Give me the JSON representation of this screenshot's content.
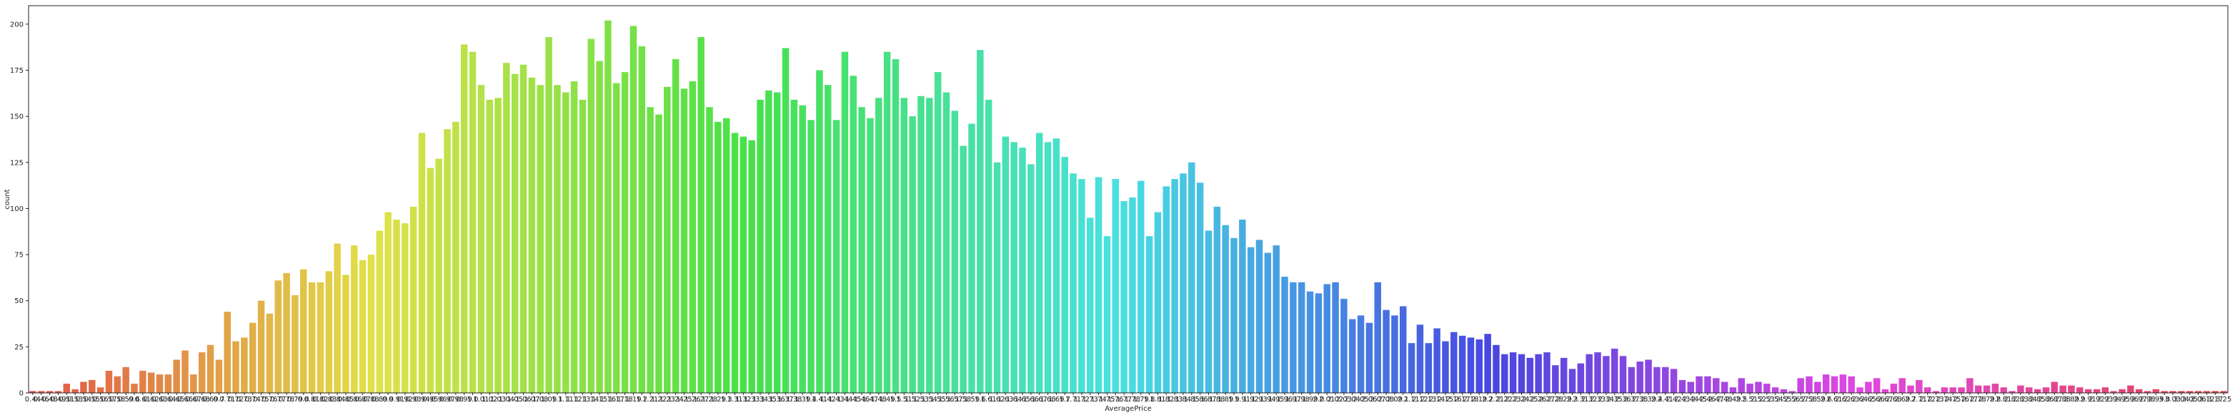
{
  "chart_data": {
    "type": "bar",
    "title": "",
    "xlabel": "AveragePrice",
    "ylabel": "count",
    "ylim": [
      0,
      210
    ],
    "yticks": [
      0,
      25,
      50,
      75,
      100,
      125,
      150,
      175,
      200
    ],
    "grid": false,
    "legend": "none",
    "palette": "husl",
    "first_category": "0.44",
    "last_category": "3.25",
    "categories": [
      "0.44",
      "0.46",
      "0.48",
      "0.49",
      "0.51",
      "0.53",
      "0.54",
      "0.55",
      "0.56",
      "0.57",
      "0.58",
      "0.59",
      "0.6",
      "0.61",
      "0.62",
      "0.63",
      "0.64",
      "0.65",
      "0.66",
      "0.67",
      "0.68",
      "0.69",
      "0.7",
      "0.71",
      "0.72",
      "0.73",
      "0.74",
      "0.75",
      "0.76",
      "0.77",
      "0.78",
      "0.79",
      "0.8",
      "0.81",
      "0.82",
      "0.83",
      "0.84",
      "0.85",
      "0.86",
      "0.87",
      "0.88",
      "0.89",
      "0.9",
      "0.91",
      "0.92",
      "0.93",
      "0.94",
      "0.95",
      "0.96",
      "0.97",
      "0.98",
      "0.99",
      "1.0",
      "1.01",
      "1.02",
      "1.03",
      "1.04",
      "1.05",
      "1.06",
      "1.07",
      "1.08",
      "1.09",
      "1.1",
      "1.11",
      "1.12",
      "1.13",
      "1.14",
      "1.15",
      "1.16",
      "1.17",
      "1.18",
      "1.19",
      "1.2",
      "1.21",
      "1.22",
      "1.23",
      "1.24",
      "1.25",
      "1.26",
      "1.27",
      "1.28",
      "1.29",
      "1.3",
      "1.31",
      "1.32",
      "1.33",
      "1.34",
      "1.35",
      "1.36",
      "1.37",
      "1.38",
      "1.39",
      "1.4",
      "1.41",
      "1.42",
      "1.43",
      "1.44",
      "1.45",
      "1.46",
      "1.47",
      "1.48",
      "1.49",
      "1.5",
      "1.51",
      "1.52",
      "1.53",
      "1.54",
      "1.55",
      "1.56",
      "1.57",
      "1.58",
      "1.59",
      "1.6",
      "1.61",
      "1.62",
      "1.63",
      "1.64",
      "1.65",
      "1.66",
      "1.67",
      "1.68",
      "1.69",
      "1.7",
      "1.71",
      "1.72",
      "1.73",
      "1.74",
      "1.75",
      "1.76",
      "1.77",
      "1.78",
      "1.79",
      "1.8",
      "1.81",
      "1.82",
      "1.83",
      "1.84",
      "1.85",
      "1.86",
      "1.87",
      "1.88",
      "1.89",
      "1.9",
      "1.91",
      "1.92",
      "1.93",
      "1.94",
      "1.95",
      "1.96",
      "1.97",
      "1.98",
      "1.99",
      "2.0",
      "2.01",
      "2.02",
      "2.03",
      "2.04",
      "2.05",
      "2.06",
      "2.07",
      "2.08",
      "2.09",
      "2.1",
      "2.11",
      "2.12",
      "2.13",
      "2.14",
      "2.15",
      "2.16",
      "2.17",
      "2.18",
      "2.19",
      "2.2",
      "2.21",
      "2.22",
      "2.23",
      "2.24",
      "2.25",
      "2.26",
      "2.27",
      "2.28",
      "2.29",
      "2.3",
      "2.31",
      "2.32",
      "2.33",
      "2.34",
      "2.35",
      "2.36",
      "2.37",
      "2.38",
      "2.39",
      "2.4",
      "2.41",
      "2.42",
      "2.43",
      "2.44",
      "2.45",
      "2.46",
      "2.47",
      "2.48",
      "2.49",
      "2.5",
      "2.51",
      "2.52",
      "2.53",
      "2.54",
      "2.55",
      "2.56",
      "2.57",
      "2.58",
      "2.59",
      "2.6",
      "2.61",
      "2.62",
      "2.63",
      "2.64",
      "2.65",
      "2.66",
      "2.67",
      "2.68",
      "2.69",
      "2.7",
      "2.71",
      "2.72",
      "2.73",
      "2.74",
      "2.75",
      "2.76",
      "2.77",
      "2.78",
      "2.79",
      "2.8",
      "2.81",
      "2.82",
      "2.83",
      "2.84",
      "2.85",
      "2.86",
      "2.87",
      "2.88",
      "2.89",
      "2.9",
      "2.91",
      "2.92",
      "2.93",
      "2.94",
      "2.95",
      "2.96",
      "2.97",
      "2.98",
      "2.99",
      "3.0",
      "3.03",
      "3.04",
      "3.05",
      "3.06",
      "3.12",
      "3.17",
      "3.25"
    ],
    "values": [
      1,
      1,
      1,
      1,
      5,
      2,
      6,
      7,
      3,
      12,
      9,
      14,
      5,
      12,
      11,
      10,
      10,
      18,
      23,
      10,
      22,
      26,
      18,
      44,
      28,
      30,
      38,
      50,
      43,
      61,
      65,
      53,
      67,
      60,
      60,
      66,
      81,
      64,
      80,
      72,
      75,
      88,
      98,
      94,
      92,
      101,
      141,
      122,
      127,
      143,
      147,
      189,
      185,
      167,
      159,
      160,
      179,
      173,
      178,
      171,
      167,
      193,
      167,
      163,
      169,
      159,
      192,
      180,
      202,
      168,
      174,
      199,
      188,
      155,
      151,
      166,
      181,
      165,
      169,
      193,
      155,
      147,
      149,
      141,
      139,
      137,
      159,
      164,
      163,
      187,
      159,
      156,
      148,
      175,
      167,
      148,
      185,
      172,
      155,
      149,
      160,
      185,
      181,
      160,
      150,
      161,
      160,
      174,
      163,
      153,
      134,
      146,
      186,
      159,
      125,
      139,
      136,
      133,
      124,
      141,
      136,
      138,
      128,
      119,
      116,
      95,
      117,
      85,
      116,
      104,
      106,
      115,
      85,
      98,
      112,
      116,
      119,
      125,
      114,
      88,
      101,
      91,
      84,
      94,
      79,
      83,
      76,
      80,
      63,
      60,
      60,
      55,
      54,
      59,
      60,
      51,
      40,
      42,
      38,
      60,
      45,
      42,
      47,
      27,
      37,
      27,
      35,
      28,
      33,
      31,
      30,
      29,
      32,
      26,
      21,
      22,
      21,
      19,
      21,
      22,
      15,
      19,
      13,
      16,
      21,
      22,
      20,
      24,
      20,
      14,
      17,
      18,
      14,
      14,
      13,
      7,
      6,
      9,
      9,
      8,
      6,
      3,
      8,
      5,
      6,
      5,
      3,
      2,
      1,
      8,
      9,
      6,
      10,
      9,
      10,
      9,
      3,
      6,
      8,
      2,
      5,
      8,
      4,
      7,
      3,
      1,
      3,
      3,
      3,
      8,
      4,
      4,
      5,
      3,
      1,
      4,
      3,
      2,
      3,
      6,
      4,
      4,
      3,
      2,
      2,
      3,
      1,
      2,
      4,
      2,
      1,
      2,
      1,
      1,
      1,
      1,
      1,
      1,
      1,
      1
    ]
  }
}
